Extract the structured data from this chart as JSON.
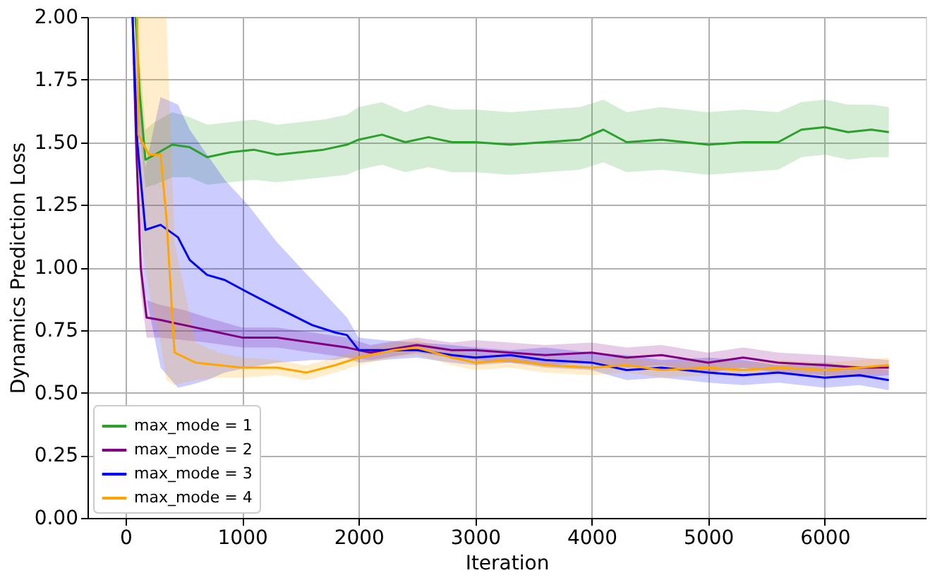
{
  "chart_data": {
    "type": "line",
    "xlabel": "Iteration",
    "ylabel": "Dynamics Prediction Loss",
    "xlim": [
      -327,
      6867
    ],
    "ylim": [
      0,
      2
    ],
    "xticks": [
      0,
      1000,
      2000,
      3000,
      4000,
      5000,
      6000
    ],
    "yticks": [
      {
        "value": 0,
        "label": "0.00"
      },
      {
        "value": 0.25,
        "label": "0.25"
      },
      {
        "value": 0.5,
        "label": "0.50"
      },
      {
        "value": 0.75,
        "label": "0.75"
      },
      {
        "value": 1,
        "label": "1.00"
      },
      {
        "value": 1.25,
        "label": "1.25"
      },
      {
        "value": 1.5,
        "label": "1.50"
      },
      {
        "value": 1.75,
        "label": "1.75"
      },
      {
        "value": 2,
        "label": "2.00"
      }
    ],
    "grid": true,
    "legend": "bottom left",
    "line_style": "solid",
    "marker": "none",
    "series": [
      {
        "name": "max_mode = 1",
        "color": "#2ca02c",
        "x": [
          85,
          120,
          170,
          250,
          400,
          550,
          700,
          900,
          1100,
          1300,
          1500,
          1700,
          1900,
          2000,
          2200,
          2400,
          2600,
          2800,
          3000,
          3300,
          3600,
          3900,
          4100,
          4300,
          4600,
          5000,
          5300,
          5600,
          5800,
          6000,
          6200,
          6400,
          6550
        ],
        "values": [
          2.0,
          1.7,
          1.43,
          1.45,
          1.49,
          1.48,
          1.44,
          1.46,
          1.47,
          1.45,
          1.46,
          1.47,
          1.49,
          1.51,
          1.53,
          1.5,
          1.52,
          1.5,
          1.5,
          1.49,
          1.5,
          1.51,
          1.55,
          1.5,
          1.51,
          1.49,
          1.5,
          1.5,
          1.55,
          1.56,
          1.54,
          1.55,
          1.54
        ],
        "lower": [
          1.9,
          1.55,
          1.32,
          1.33,
          1.36,
          1.36,
          1.33,
          1.34,
          1.35,
          1.34,
          1.35,
          1.36,
          1.37,
          1.39,
          1.41,
          1.38,
          1.4,
          1.38,
          1.38,
          1.37,
          1.38,
          1.39,
          1.42,
          1.38,
          1.39,
          1.37,
          1.38,
          1.39,
          1.44,
          1.45,
          1.43,
          1.44,
          1.44
        ],
        "upper": [
          2.0,
          1.85,
          1.55,
          1.58,
          1.62,
          1.6,
          1.57,
          1.58,
          1.59,
          1.57,
          1.58,
          1.59,
          1.61,
          1.64,
          1.66,
          1.62,
          1.65,
          1.63,
          1.63,
          1.62,
          1.63,
          1.64,
          1.67,
          1.62,
          1.64,
          1.62,
          1.63,
          1.62,
          1.66,
          1.67,
          1.65,
          1.65,
          1.64
        ]
      },
      {
        "name": "max_mode = 2",
        "color": "#800080",
        "x": [
          60,
          90,
          130,
          180,
          300,
          500,
          700,
          1000,
          1300,
          1600,
          1900,
          2100,
          2500,
          2800,
          3000,
          3300,
          3600,
          4000,
          4300,
          4600,
          5000,
          5300,
          5600,
          6000,
          6300,
          6550
        ],
        "values": [
          2.0,
          1.5,
          1.0,
          0.8,
          0.79,
          0.77,
          0.75,
          0.72,
          0.72,
          0.7,
          0.68,
          0.66,
          0.69,
          0.67,
          0.67,
          0.66,
          0.65,
          0.66,
          0.64,
          0.65,
          0.62,
          0.64,
          0.62,
          0.61,
          0.6,
          0.6
        ],
        "lower": [
          1.9,
          1.4,
          0.9,
          0.72,
          0.72,
          0.71,
          0.7,
          0.68,
          0.68,
          0.66,
          0.64,
          0.63,
          0.66,
          0.64,
          0.63,
          0.62,
          0.61,
          0.62,
          0.6,
          0.61,
          0.58,
          0.6,
          0.58,
          0.57,
          0.56,
          0.57
        ],
        "upper": [
          2.0,
          1.6,
          1.1,
          0.87,
          0.85,
          0.83,
          0.8,
          0.76,
          0.76,
          0.74,
          0.72,
          0.69,
          0.72,
          0.7,
          0.71,
          0.7,
          0.69,
          0.7,
          0.68,
          0.69,
          0.66,
          0.68,
          0.66,
          0.65,
          0.64,
          0.63
        ]
      },
      {
        "name": "max_mode = 3",
        "color": "#0000ff",
        "x": [
          60,
          100,
          170,
          300,
          450,
          550,
          700,
          850,
          1050,
          1300,
          1600,
          1800,
          1900,
          2000,
          2200,
          2500,
          2800,
          3000,
          3300,
          3600,
          4000,
          4300,
          4600,
          5000,
          5300,
          5600,
          6000,
          6300,
          6550
        ],
        "values": [
          2.0,
          1.5,
          1.15,
          1.17,
          1.12,
          1.03,
          0.97,
          0.95,
          0.9,
          0.84,
          0.77,
          0.74,
          0.73,
          0.67,
          0.67,
          0.67,
          0.65,
          0.64,
          0.65,
          0.63,
          0.62,
          0.59,
          0.6,
          0.58,
          0.57,
          0.58,
          0.56,
          0.57,
          0.55
        ],
        "lower": [
          1.9,
          1.3,
          0.9,
          0.6,
          0.52,
          0.53,
          0.55,
          0.58,
          0.6,
          0.62,
          0.63,
          0.63,
          0.64,
          0.62,
          0.63,
          0.64,
          0.62,
          0.61,
          0.62,
          0.6,
          0.59,
          0.55,
          0.56,
          0.54,
          0.53,
          0.54,
          0.52,
          0.53,
          0.51
        ],
        "upper": [
          2.0,
          1.8,
          1.4,
          1.68,
          1.65,
          1.55,
          1.45,
          1.35,
          1.25,
          1.1,
          0.95,
          0.85,
          0.8,
          0.72,
          0.71,
          0.7,
          0.69,
          0.68,
          0.67,
          0.68,
          0.66,
          0.65,
          0.63,
          0.64,
          0.63,
          0.61,
          0.62,
          0.6,
          0.59
        ]
      },
      {
        "name": "max_mode = 4",
        "color": "#ffa500",
        "x": [
          100,
          110,
          200,
          300,
          350,
          420,
          600,
          800,
          1000,
          1300,
          1550,
          1800,
          2000,
          2300,
          2500,
          2800,
          3000,
          3300,
          3600,
          4000,
          4300,
          4600,
          5000,
          5300,
          5600,
          6000,
          6300,
          6550
        ],
        "values": [
          2.0,
          1.53,
          1.45,
          1.45,
          1.2,
          0.66,
          0.62,
          0.61,
          0.6,
          0.6,
          0.58,
          0.61,
          0.64,
          0.67,
          0.68,
          0.64,
          0.62,
          0.63,
          0.61,
          0.6,
          0.61,
          0.59,
          0.6,
          0.59,
          0.6,
          0.59,
          0.6,
          0.61
        ],
        "lower": [
          1.9,
          1.2,
          0.9,
          0.7,
          0.55,
          0.53,
          0.55,
          0.56,
          0.56,
          0.57,
          0.55,
          0.58,
          0.61,
          0.64,
          0.65,
          0.61,
          0.59,
          0.6,
          0.58,
          0.57,
          0.58,
          0.56,
          0.57,
          0.56,
          0.57,
          0.56,
          0.57,
          0.58
        ],
        "upper": [
          2.0,
          2.0,
          2.0,
          2.0,
          2.0,
          1.1,
          0.7,
          0.66,
          0.64,
          0.63,
          0.61,
          0.64,
          0.67,
          0.7,
          0.71,
          0.67,
          0.65,
          0.66,
          0.64,
          0.63,
          0.64,
          0.62,
          0.63,
          0.62,
          0.63,
          0.62,
          0.63,
          0.64
        ]
      }
    ]
  }
}
